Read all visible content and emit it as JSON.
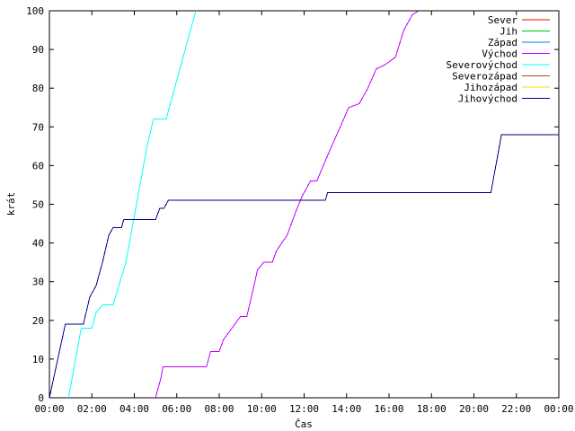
{
  "chart_data": {
    "type": "line",
    "xlabel": "Čas",
    "ylabel": "krát",
    "xlim": [
      0,
      24
    ],
    "ylim": [
      0,
      100
    ],
    "x_ticks": [
      0,
      2,
      4,
      6,
      8,
      10,
      12,
      14,
      16,
      18,
      20,
      22,
      24
    ],
    "x_tick_labels": [
      "00:00",
      "02:00",
      "04:00",
      "06:00",
      "08:00",
      "10:00",
      "12:00",
      "14:00",
      "16:00",
      "18:00",
      "20:00",
      "22:00",
      "00:00"
    ],
    "y_ticks": [
      0,
      10,
      20,
      30,
      40,
      50,
      60,
      70,
      80,
      90,
      100
    ],
    "y_tick_labels": [
      "0",
      "10",
      "20",
      "30",
      "40",
      "50",
      "60",
      "70",
      "80",
      "90",
      "100"
    ],
    "grid": false,
    "legend_position": "top-right",
    "series": [
      {
        "name": "Sever",
        "color": "#ff0000",
        "points": []
      },
      {
        "name": "Jih",
        "color": "#00c000",
        "points": []
      },
      {
        "name": "Západ",
        "color": "#0080ff",
        "points": []
      },
      {
        "name": "Východ",
        "color": "#c000ff",
        "points": [
          [
            5.0,
            0
          ],
          [
            5.25,
            5
          ],
          [
            5.35,
            8
          ],
          [
            7.4,
            8
          ],
          [
            7.6,
            12
          ],
          [
            8.0,
            12
          ],
          [
            8.2,
            15
          ],
          [
            8.6,
            18
          ],
          [
            9.0,
            21
          ],
          [
            9.3,
            21
          ],
          [
            9.6,
            28
          ],
          [
            9.8,
            33
          ],
          [
            10.1,
            35
          ],
          [
            10.5,
            35
          ],
          [
            10.7,
            38
          ],
          [
            11.2,
            42
          ],
          [
            11.6,
            48
          ],
          [
            11.9,
            52
          ],
          [
            12.3,
            56
          ],
          [
            12.6,
            56
          ],
          [
            12.9,
            60
          ],
          [
            13.3,
            65
          ],
          [
            13.7,
            70
          ],
          [
            14.1,
            75
          ],
          [
            14.6,
            76
          ],
          [
            15.0,
            80
          ],
          [
            15.4,
            85
          ],
          [
            15.8,
            86
          ],
          [
            16.3,
            88
          ],
          [
            16.7,
            95
          ],
          [
            17.1,
            99
          ],
          [
            17.4,
            100
          ]
        ]
      },
      {
        "name": "Severovýchod",
        "color": "#00ffff",
        "points": [
          [
            0.9,
            0
          ],
          [
            1.5,
            18
          ],
          [
            2.0,
            18
          ],
          [
            2.2,
            22
          ],
          [
            2.5,
            24
          ],
          [
            3.0,
            24
          ],
          [
            3.6,
            35
          ],
          [
            4.1,
            50
          ],
          [
            4.6,
            65
          ],
          [
            4.9,
            72
          ],
          [
            5.5,
            72
          ],
          [
            6.9,
            100
          ]
        ]
      },
      {
        "name": "Severozápad",
        "color": "#a0522d",
        "points": []
      },
      {
        "name": "Jihozápad",
        "color": "#ffd700",
        "points": []
      },
      {
        "name": "Jihovýchod",
        "color": "#000080",
        "points": [
          [
            0.0,
            0
          ],
          [
            0.75,
            19
          ],
          [
            1.6,
            19
          ],
          [
            1.9,
            26
          ],
          [
            2.2,
            29
          ],
          [
            2.5,
            35
          ],
          [
            2.8,
            42
          ],
          [
            3.0,
            44
          ],
          [
            3.4,
            44
          ],
          [
            3.5,
            46
          ],
          [
            5.0,
            46
          ],
          [
            5.2,
            49
          ],
          [
            5.4,
            49
          ],
          [
            5.6,
            51
          ],
          [
            13.0,
            51
          ],
          [
            13.1,
            53
          ],
          [
            20.8,
            53
          ],
          [
            21.3,
            68
          ],
          [
            24.0,
            68
          ]
        ]
      }
    ]
  }
}
